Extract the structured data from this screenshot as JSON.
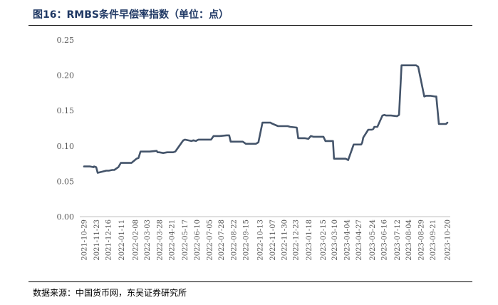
{
  "figure": {
    "title": "图16：RMBS条件早偿率指数（单位：点）",
    "source": "数据来源：中国货币网，东吴证券研究所"
  },
  "chart_data": {
    "type": "line",
    "title": "",
    "xlabel": "",
    "ylabel": "",
    "ylim": [
      0,
      0.25
    ],
    "yticks": [
      "0.00",
      "0.05",
      "0.10",
      "0.15",
      "0.20",
      "0.25"
    ],
    "xtick_labels": [
      "2021-10-29",
      "2021-11-23",
      "2021-12-16",
      "2022-01-11",
      "2022-02-08",
      "2022-03-03",
      "2022-03-28",
      "2022-04-21",
      "2022-05-17",
      "2022-06-10",
      "2022-07-05",
      "2022-07-28",
      "2022-08-22",
      "2022-09-15",
      "2022-10-13",
      "2022-11-07",
      "2022-11-30",
      "2022-12-23",
      "2023-01-18",
      "2023-02-15",
      "2023-03-10",
      "2023-04-04",
      "2023-04-27",
      "2023-05-24",
      "2023-06-16",
      "2023-07-12",
      "2023-08-04",
      "2023-08-29",
      "2023-09-21",
      "2023-10-20"
    ],
    "grid": false,
    "legend": "none",
    "line_color": "#44546a",
    "series": [
      {
        "x": [
          "2021-10-29",
          "2021-11-10",
          "2021-11-17",
          "2021-11-18",
          "2021-11-22",
          "2021-11-25",
          "2021-12-12",
          "2021-12-17",
          "2021-12-24",
          "2021-12-28",
          "2022-01-05",
          "2022-01-10",
          "2022-01-13",
          "2022-01-17",
          "2022-01-31",
          "2022-02-10",
          "2022-02-14",
          "2022-02-18",
          "2022-03-08",
          "2022-03-22",
          "2022-03-24",
          "2022-03-27",
          "2022-04-04",
          "2022-04-12",
          "2022-04-24",
          "2022-04-28",
          "2022-05-11",
          "2022-05-14",
          "2022-05-17",
          "2022-05-30",
          "2022-06-03",
          "2022-06-08",
          "2022-06-10",
          "2022-06-13",
          "2022-06-27",
          "2022-07-01",
          "2022-07-08",
          "2022-07-13",
          "2022-07-25",
          "2022-08-08",
          "2022-08-13",
          "2022-08-16",
          "2022-09-01",
          "2022-09-05",
          "2022-09-09",
          "2022-09-15",
          "2022-09-28",
          "2022-10-05",
          "2022-10-10",
          "2022-10-18",
          "2022-10-25",
          "2022-11-01",
          "2022-11-03",
          "2022-11-05",
          "2022-11-18",
          "2022-11-30",
          "2022-12-07",
          "2022-12-12",
          "2022-12-25",
          "2022-12-28",
          "2023-01-05",
          "2023-01-10",
          "2023-01-17",
          "2023-01-22",
          "2023-01-27",
          "2023-02-06",
          "2023-02-10",
          "2023-02-16",
          "2023-02-20",
          "2023-03-01",
          "2023-03-07",
          "2023-03-09",
          "2023-03-14",
          "2023-03-27",
          "2023-04-01",
          "2023-04-06",
          "2023-04-17",
          "2023-04-20",
          "2023-04-25",
          "2023-05-02",
          "2023-05-04",
          "2023-05-06",
          "2023-05-16",
          "2023-05-21",
          "2023-05-23",
          "2023-05-26",
          "2023-05-28",
          "2023-06-03",
          "2023-06-13",
          "2023-06-17",
          "2023-06-20",
          "2023-06-30",
          "2023-07-12",
          "2023-07-16",
          "2023-07-21",
          "2023-07-31",
          "2023-08-14",
          "2023-08-19",
          "2023-08-23",
          "2023-09-04",
          "2023-09-08",
          "2023-09-16",
          "2023-09-25",
          "2023-09-28",
          "2023-10-03",
          "2023-10-06",
          "2023-10-12",
          "2023-10-17",
          "2023-10-20"
        ],
        "y": [
          0.071,
          0.071,
          0.07,
          0.071,
          0.07,
          0.062,
          0.065,
          0.065,
          0.066,
          0.066,
          0.07,
          0.076,
          0.076,
          0.076,
          0.076,
          0.082,
          0.083,
          0.092,
          0.092,
          0.093,
          0.091,
          0.091,
          0.09,
          0.091,
          0.091,
          0.092,
          0.105,
          0.108,
          0.109,
          0.107,
          0.108,
          0.107,
          0.108,
          0.109,
          0.109,
          0.109,
          0.109,
          0.114,
          0.114,
          0.115,
          0.115,
          0.106,
          0.106,
          0.106,
          0.106,
          0.103,
          0.103,
          0.103,
          0.105,
          0.133,
          0.133,
          0.133,
          0.133,
          0.132,
          0.128,
          0.128,
          0.128,
          0.127,
          0.126,
          0.111,
          0.111,
          0.111,
          0.11,
          0.114,
          0.113,
          0.113,
          0.113,
          0.113,
          0.107,
          0.107,
          0.107,
          0.082,
          0.082,
          0.082,
          0.082,
          0.08,
          0.102,
          0.102,
          0.102,
          0.102,
          0.105,
          0.112,
          0.123,
          0.123,
          0.123,
          0.124,
          0.127,
          0.127,
          0.143,
          0.144,
          0.143,
          0.143,
          0.142,
          0.144,
          0.214,
          0.214,
          0.214,
          0.214,
          0.212,
          0.17,
          0.171,
          0.171,
          0.17,
          0.17,
          0.131,
          0.131,
          0.131,
          0.131,
          0.133
        ]
      }
    ]
  }
}
